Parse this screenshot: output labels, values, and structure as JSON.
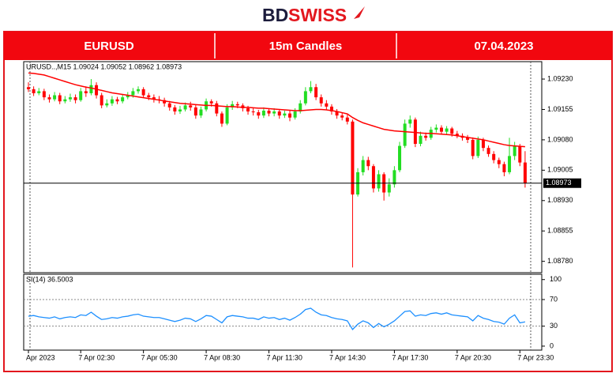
{
  "logo": {
    "part1": "BD",
    "part2": "SWISS"
  },
  "header": {
    "symbol": "EURUSD",
    "timeframe": "15m Candles",
    "date": "07.04.2023"
  },
  "chart_data": [
    {
      "type": "candlestick",
      "legend_text": "URUSD..,M15  1.09024 1.09052 1.08962 1.08973",
      "categories": [
        "Apr 2023",
        null,
        null,
        null,
        null,
        null,
        null,
        null,
        null,
        null,
        "7 Apr 02:30",
        null,
        null,
        null,
        null,
        null,
        null,
        null,
        null,
        null,
        null,
        null,
        "7 Apr 05:30",
        null,
        null,
        null,
        null,
        null,
        null,
        null,
        null,
        null,
        null,
        null,
        "7 Apr 08:30",
        null,
        null,
        null,
        null,
        null,
        null,
        null,
        null,
        null,
        null,
        null,
        "7 Apr 11:30",
        null,
        null,
        null,
        null,
        null,
        null,
        null,
        null,
        null,
        null,
        null,
        "7 Apr 14:30",
        null,
        null,
        null,
        null,
        null,
        null,
        null,
        null,
        null,
        null,
        null,
        "7 Apr 17:30",
        null,
        null,
        null,
        null,
        null,
        null,
        null,
        null,
        null,
        null,
        null,
        "7 Apr 20:30",
        null,
        null,
        null,
        null,
        null,
        null,
        null,
        null,
        null,
        null,
        null,
        "7 Apr 23:30",
        null
      ],
      "open": [
        1.0921,
        1.09205,
        1.09195,
        1.092,
        1.09185,
        1.0918,
        1.0919,
        1.09175,
        1.0918,
        1.09185,
        1.09178,
        1.092,
        1.09195,
        1.09215,
        1.0919,
        1.09165,
        1.0917,
        1.0918,
        1.09175,
        1.09185,
        1.0919,
        1.092,
        1.09205,
        1.0919,
        1.09185,
        1.0918,
        1.09178,
        1.0917,
        1.0916,
        1.0915,
        1.09155,
        1.09165,
        1.0916,
        1.0914,
        1.09155,
        1.09175,
        1.0917,
        1.09145,
        1.0912,
        1.0916,
        1.09168,
        1.09165,
        1.09158,
        1.0915,
        1.09148,
        1.0914,
        1.09152,
        1.09145,
        1.0915,
        1.0914,
        1.09145,
        1.09135,
        1.0915,
        1.0917,
        1.092,
        1.0921,
        1.09185,
        1.0917,
        1.09162,
        1.0915,
        1.0914,
        1.09135,
        1.09125,
        1.08945,
        1.09,
        1.0903,
        1.09015,
        1.0896,
        1.08995,
        1.0895,
        1.0897,
        1.09005,
        1.09065,
        1.0912,
        1.0913,
        1.0907,
        1.0909,
        1.09085,
        1.09105,
        1.0911,
        1.091,
        1.09108,
        1.09095,
        1.0909,
        1.09085,
        1.0908,
        1.0904,
        1.0908,
        1.0906,
        1.09045,
        1.0903,
        1.0902,
        1.09,
        1.0904,
        1.09065,
        1.09024
      ],
      "high": [
        1.09222,
        1.09212,
        1.09208,
        1.09206,
        1.09192,
        1.09198,
        1.09196,
        1.09188,
        1.09194,
        1.09192,
        1.09208,
        1.09212,
        1.0923,
        1.09222,
        1.09196,
        1.0918,
        1.09188,
        1.09186,
        1.09192,
        1.09198,
        1.09208,
        1.09212,
        1.0921,
        1.09196,
        1.09192,
        1.09188,
        1.09184,
        1.09176,
        1.09166,
        1.09164,
        1.09172,
        1.09174,
        1.09166,
        1.09162,
        1.09182,
        1.0918,
        1.09176,
        1.0915,
        1.09168,
        1.09176,
        1.09174,
        1.0917,
        1.09164,
        1.09158,
        1.09154,
        1.0916,
        1.09158,
        1.09158,
        1.09156,
        1.09152,
        1.09152,
        1.09158,
        1.09178,
        1.0921,
        1.09225,
        1.09218,
        1.09192,
        1.09178,
        1.09168,
        1.09156,
        1.09148,
        1.09142,
        1.0913,
        1.0901,
        1.0904,
        1.09038,
        1.0902,
        1.09005,
        1.09,
        1.08985,
        1.09015,
        1.09075,
        1.0913,
        1.0914,
        1.09135,
        1.091,
        1.09098,
        1.09112,
        1.09118,
        1.09116,
        1.09114,
        1.09112,
        1.09102,
        1.09096,
        1.09092,
        1.09086,
        1.09088,
        1.09085,
        1.09066,
        1.09052,
        1.09036,
        1.09026,
        1.09085,
        1.09075,
        1.0907,
        1.09052
      ],
      "low": [
        1.09198,
        1.09188,
        1.0919,
        1.09178,
        1.09172,
        1.09175,
        1.09168,
        1.0917,
        1.09174,
        1.0917,
        1.09174,
        1.09186,
        1.0919,
        1.09182,
        1.09158,
        1.0916,
        1.09164,
        1.09168,
        1.0917,
        1.0918,
        1.09184,
        1.09194,
        1.09184,
        1.09178,
        1.09172,
        1.0917,
        1.09162,
        1.09152,
        1.09142,
        1.09144,
        1.0915,
        1.09152,
        1.09132,
        1.09134,
        1.0915,
        1.09162,
        1.09138,
        1.09112,
        1.09116,
        1.09154,
        1.09158,
        1.0915,
        1.09142,
        1.0914,
        1.09132,
        1.09134,
        1.09138,
        1.09138,
        1.09132,
        1.09134,
        1.09126,
        1.0913,
        1.09145,
        1.09165,
        1.09195,
        1.09178,
        1.09162,
        1.09155,
        1.09142,
        1.09132,
        1.09128,
        1.09118,
        1.08765,
        1.0894,
        1.08992,
        1.09005,
        1.0895,
        1.08952,
        1.0893,
        1.0894,
        1.08962,
        1.09,
        1.0906,
        1.0911,
        1.09062,
        1.09064,
        1.09078,
        1.0908,
        1.09098,
        1.09094,
        1.09094,
        1.09088,
        1.09084,
        1.09078,
        1.09072,
        1.09032,
        1.09035,
        1.09052,
        1.09038,
        1.09022,
        1.0901,
        1.0899,
        1.08995,
        1.0903,
        1.09015,
        1.08962
      ],
      "close": [
        1.09205,
        1.09195,
        1.092,
        1.09185,
        1.0918,
        1.0919,
        1.09175,
        1.0918,
        1.09185,
        1.09178,
        1.092,
        1.09195,
        1.09215,
        1.0919,
        1.09165,
        1.0917,
        1.0918,
        1.09175,
        1.09185,
        1.0919,
        1.092,
        1.09205,
        1.0919,
        1.09185,
        1.0918,
        1.09178,
        1.0917,
        1.0916,
        1.0915,
        1.09155,
        1.09165,
        1.0916,
        1.0914,
        1.09155,
        1.09175,
        1.0917,
        1.09145,
        1.0912,
        1.0916,
        1.09168,
        1.09165,
        1.09158,
        1.0915,
        1.09148,
        1.0914,
        1.09152,
        1.09145,
        1.0915,
        1.0914,
        1.09145,
        1.09135,
        1.0915,
        1.0917,
        1.092,
        1.0921,
        1.09185,
        1.0917,
        1.09162,
        1.0915,
        1.0914,
        1.09135,
        1.09125,
        1.08945,
        1.09,
        1.0903,
        1.09015,
        1.0896,
        1.08995,
        1.0895,
        1.0897,
        1.09005,
        1.09065,
        1.0912,
        1.0913,
        1.0907,
        1.0909,
        1.09085,
        1.09105,
        1.0911,
        1.091,
        1.09108,
        1.09095,
        1.0909,
        1.09085,
        1.0908,
        1.0904,
        1.0908,
        1.0906,
        1.09045,
        1.0903,
        1.0902,
        1.09,
        1.0904,
        1.09065,
        1.09024,
        1.08973
      ],
      "overlay_values": [
        1.09245,
        1.09244,
        1.09242,
        1.0924,
        1.09236,
        1.09232,
        1.09228,
        1.09224,
        1.0922,
        1.09216,
        1.09213,
        1.0921,
        1.09208,
        1.09205,
        1.09202,
        1.09199,
        1.09196,
        1.09194,
        1.09192,
        1.0919,
        1.09188,
        1.09186,
        1.09184,
        1.09182,
        1.0918,
        1.09178,
        1.09176,
        1.09174,
        1.09172,
        1.0917,
        1.09169,
        1.09168,
        1.09167,
        1.09166,
        1.09165,
        1.09165,
        1.09164,
        1.09163,
        1.09162,
        1.09162,
        1.09161,
        1.0916,
        1.0916,
        1.09159,
        1.09158,
        1.09158,
        1.09157,
        1.09156,
        1.09155,
        1.09154,
        1.09153,
        1.09152,
        1.09152,
        1.09153,
        1.09154,
        1.09155,
        1.09155,
        1.09154,
        1.09152,
        1.0915,
        1.09147,
        1.09144,
        1.09135,
        1.09128,
        1.09122,
        1.09118,
        1.09114,
        1.0911,
        1.09106,
        1.09104,
        1.09102,
        1.09101,
        1.091,
        1.09099,
        1.09098,
        1.09097,
        1.09096,
        1.09096,
        1.09095,
        1.09094,
        1.09093,
        1.09092,
        1.0909,
        1.09088,
        1.09086,
        1.09084,
        1.09082,
        1.0908,
        1.09077,
        1.09074,
        1.09071,
        1.09068,
        1.09066,
        1.09065,
        1.09064,
        1.09063
      ],
      "overlay_color": "#ff0000",
      "up_color": "#22dd22",
      "down_color": "#ff0000",
      "last_price": 1.08973,
      "ylim": [
        1.08752,
        1.09273
      ],
      "yticks": [
        {
          "value": 1.0923,
          "label": "1.09230"
        },
        {
          "value": 1.09155,
          "label": "1.09155"
        },
        {
          "value": 1.0908,
          "label": "1.09080"
        },
        {
          "value": 1.09005,
          "label": "1.09005"
        },
        {
          "value": 1.0893,
          "label": "1.08930"
        },
        {
          "value": 1.08855,
          "label": "1.08855"
        },
        {
          "value": 1.0878,
          "label": "1.08780"
        }
      ]
    },
    {
      "type": "line",
      "legend_text": "SI(14) 36.5003",
      "values": [
        45,
        46,
        44,
        43,
        42,
        44,
        41,
        43,
        44,
        43,
        47,
        46,
        51,
        45,
        40,
        41,
        43,
        42,
        44,
        45,
        47,
        48,
        45,
        44,
        43,
        43,
        41,
        39,
        37,
        39,
        42,
        41,
        37,
        41,
        46,
        45,
        40,
        35,
        44,
        46,
        45,
        44,
        42,
        42,
        40,
        44,
        42,
        43,
        40,
        42,
        39,
        43,
        48,
        55,
        57,
        51,
        47,
        46,
        43,
        41,
        40,
        38,
        25,
        33,
        38,
        35,
        28,
        34,
        29,
        33,
        38,
        45,
        52,
        53,
        45,
        47,
        46,
        49,
        50,
        48,
        50,
        47,
        46,
        45,
        44,
        38,
        46,
        42,
        40,
        37,
        36,
        33,
        42,
        47,
        35,
        36.5003
      ],
      "color": "#1e90ff",
      "ylim": [
        -6,
        108
      ],
      "yticks": [
        0,
        30,
        70,
        100
      ],
      "levels": [
        70,
        30
      ]
    }
  ]
}
